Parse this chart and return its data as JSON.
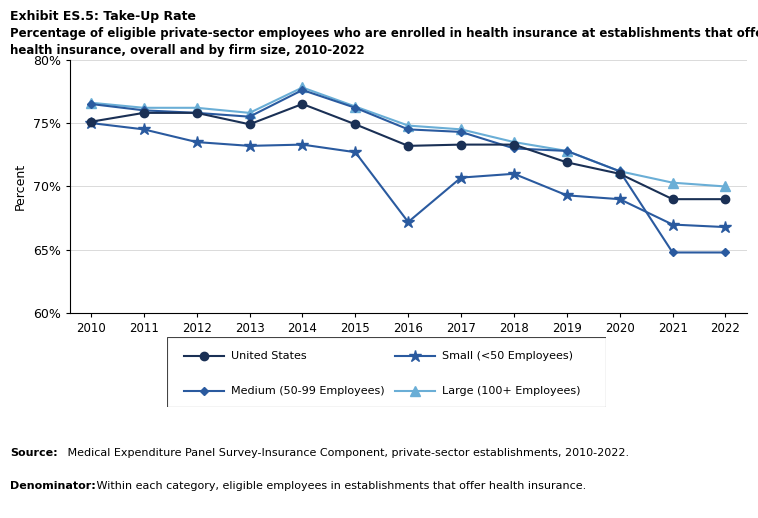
{
  "title_line1": "Exhibit ES.5: Take-Up Rate",
  "title_line2": "Percentage of eligible private-sector employees who are enrolled in health insurance at establishments that offer",
  "title_line3": "health insurance, overall and by firm size, 2010-2022",
  "years": [
    2010,
    2011,
    2012,
    2013,
    2014,
    2015,
    2016,
    2017,
    2018,
    2019,
    2020,
    2021,
    2022
  ],
  "united_states": [
    75.1,
    75.8,
    75.8,
    74.9,
    76.5,
    74.9,
    73.2,
    73.3,
    73.3,
    71.9,
    71.0,
    69.0,
    69.0
  ],
  "small": [
    75.0,
    74.5,
    73.5,
    73.2,
    73.3,
    72.7,
    67.2,
    70.7,
    71.0,
    69.3,
    69.0,
    67.0,
    66.8
  ],
  "medium": [
    76.5,
    76.0,
    75.8,
    75.5,
    77.6,
    76.2,
    74.5,
    74.3,
    73.0,
    72.8,
    71.2,
    64.8,
    64.8
  ],
  "large": [
    76.6,
    76.2,
    76.2,
    75.8,
    77.8,
    76.3,
    74.8,
    74.5,
    73.5,
    72.8,
    71.2,
    70.3,
    70.0
  ],
  "color_us": "#1a3055",
  "color_small": "#2a5a9f",
  "color_medium": "#2a5a9f",
  "color_large": "#6aaed6",
  "ylabel": "Percent",
  "ylim_min": 60,
  "ylim_max": 80,
  "yticks": [
    60,
    65,
    70,
    75,
    80
  ],
  "source_bold": "Source:",
  "source_rest": " Medical Expenditure Panel Survey-Insurance Component, private-sector establishments, 2010-2022.",
  "denom_bold": "Denominator:",
  "denom_rest": " Within each category, eligible employees in establishments that offer health insurance.",
  "legend_entries": [
    {
      "label": "United States",
      "marker": "o",
      "ms": 6,
      "col_idx": 0
    },
    {
      "label": "Small (<50 Employees)",
      "marker": "*",
      "ms": 9,
      "col_idx": 1
    },
    {
      "label": "Medium (50-99 Employees)",
      "marker": "D",
      "ms": 5,
      "col_idx": 0
    },
    {
      "label": "Large (100+ Employees)",
      "marker": "^",
      "ms": 7,
      "col_idx": 1
    }
  ]
}
